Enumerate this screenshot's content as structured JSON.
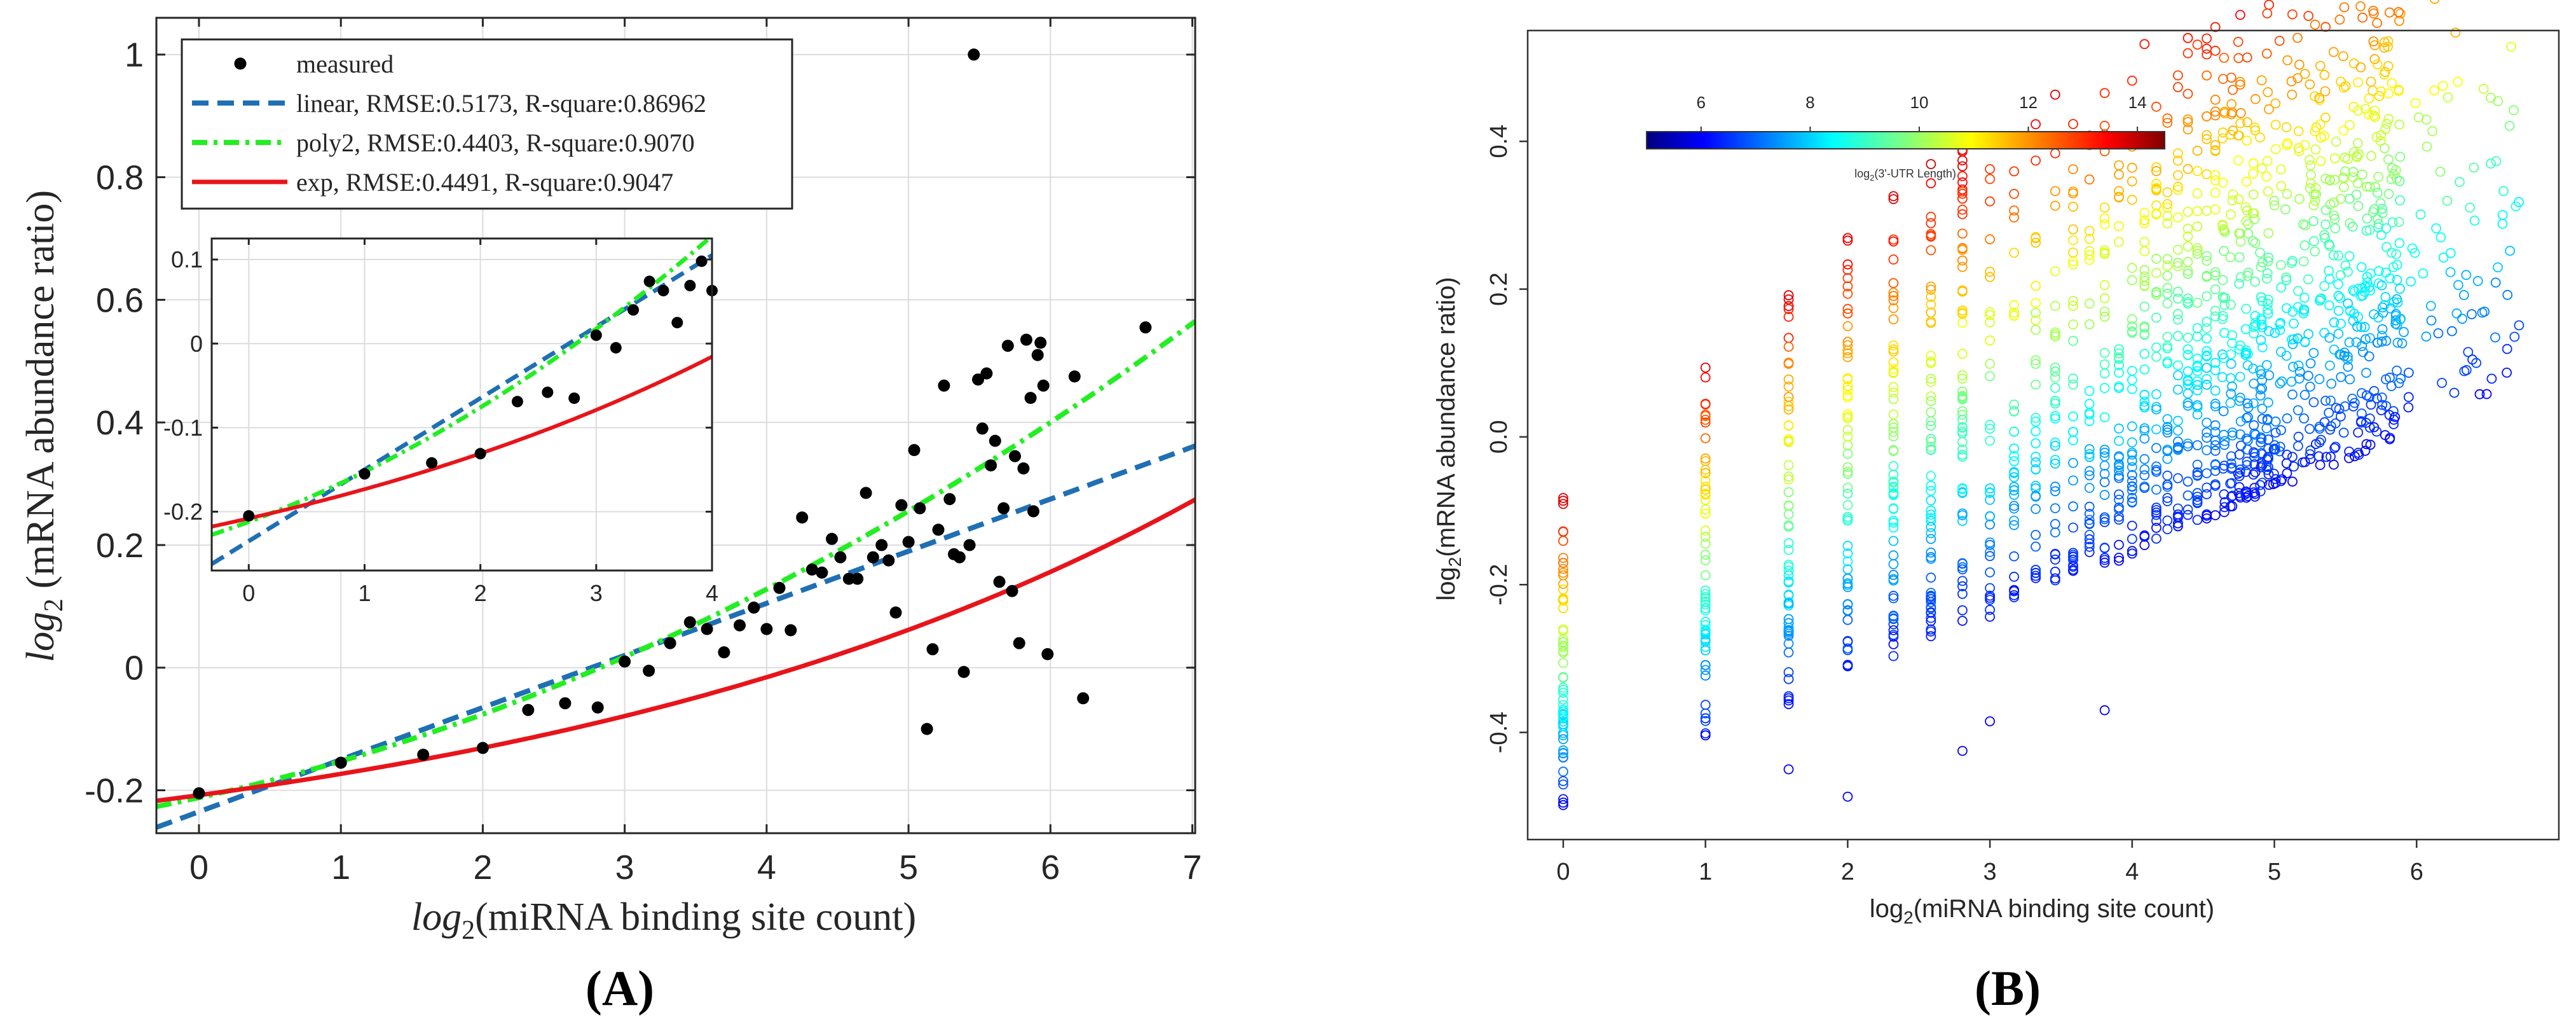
{
  "panel_labels": {
    "a": "(A)",
    "b": "(B)"
  },
  "chart_data": [
    {
      "type": "scatter",
      "panel": "A",
      "title": "",
      "xlabel_pre": "log",
      "xlabel_sub": "2",
      "xlabel_post": "(miRNA binding site count)",
      "ylabel_pre": "log",
      "ylabel_sub": "2",
      "ylabel_post": " (mRNA abundance ratio)",
      "xlim": [
        -0.3,
        7.02
      ],
      "ylim": [
        -0.27,
        1.06
      ],
      "xticks": [
        0,
        1,
        2,
        3,
        4,
        5,
        6,
        7
      ],
      "yticks": [
        -0.2,
        0,
        0.2,
        0.4,
        0.6,
        0.8,
        1
      ],
      "ytick_labels": [
        "-0.2",
        "0",
        "0.2",
        "0.4",
        "0.6",
        "0.8",
        "1"
      ],
      "grid": true,
      "legend_position": "top-left",
      "legend": [
        {
          "key": "measured",
          "label": "measured",
          "style": "marker",
          "color": "#000000"
        },
        {
          "key": "linear",
          "label": "linear, RMSE:0.5173, R-square:0.86962",
          "style": "dashed",
          "color": "#1f6fb4"
        },
        {
          "key": "poly2",
          "label": "poly2, RMSE:0.4403, R-square:0.9070",
          "style": "dashdot",
          "color": "#22ee22"
        },
        {
          "key": "exp",
          "label": "exp, RMSE:0.4491, R-square:0.9047",
          "style": "solid",
          "color": "#e8141a"
        }
      ],
      "fits": {
        "linear": {
          "intercept": -0.235,
          "slope": 0.085
        },
        "poly2": {
          "a": -0.212,
          "b": 0.051,
          "c": 0.0085
        },
        "exp": {
          "a": -0.365,
          "b": 0.157,
          "k": 0.2
        }
      },
      "points": [
        [
          0,
          -0.205
        ],
        [
          1,
          -0.155
        ],
        [
          1.58,
          -0.142
        ],
        [
          2,
          -0.131
        ],
        [
          2.32,
          -0.069
        ],
        [
          2.58,
          -0.058
        ],
        [
          2.81,
          -0.065
        ],
        [
          3,
          0.01
        ],
        [
          3.17,
          -0.005
        ],
        [
          3.32,
          0.04
        ],
        [
          3.46,
          0.074
        ],
        [
          3.58,
          0.063
        ],
        [
          3.7,
          0.025
        ],
        [
          3.81,
          0.069
        ],
        [
          3.91,
          0.098
        ],
        [
          4,
          0.063
        ],
        [
          4.09,
          0.13
        ],
        [
          4.17,
          0.061
        ],
        [
          4.25,
          0.245
        ],
        [
          4.32,
          0.16
        ],
        [
          4.39,
          0.155
        ],
        [
          4.46,
          0.21
        ],
        [
          4.52,
          0.18
        ],
        [
          4.58,
          0.145
        ],
        [
          4.64,
          0.145
        ],
        [
          4.7,
          0.285
        ],
        [
          4.75,
          0.18
        ],
        [
          4.81,
          0.2
        ],
        [
          4.86,
          0.175
        ],
        [
          4.91,
          0.09
        ],
        [
          4.95,
          0.265
        ],
        [
          5,
          0.205
        ],
        [
          5.04,
          0.355
        ],
        [
          5.08,
          0.26
        ],
        [
          5.13,
          -0.1
        ],
        [
          5.17,
          0.03
        ],
        [
          5.21,
          0.225
        ],
        [
          5.25,
          0.46
        ],
        [
          5.29,
          0.275
        ],
        [
          5.32,
          0.185
        ],
        [
          5.36,
          0.18
        ],
        [
          5.39,
          -0.007
        ],
        [
          5.43,
          0.2
        ],
        [
          5.46,
          1.0
        ],
        [
          5.49,
          0.47
        ],
        [
          5.52,
          0.39
        ],
        [
          5.55,
          0.48
        ],
        [
          5.58,
          0.33
        ],
        [
          5.61,
          0.37
        ],
        [
          5.64,
          0.14
        ],
        [
          5.67,
          0.26
        ],
        [
          5.7,
          0.525
        ],
        [
          5.73,
          0.125
        ],
        [
          5.75,
          0.345
        ],
        [
          5.78,
          0.04
        ],
        [
          5.81,
          0.325
        ],
        [
          5.83,
          0.535
        ],
        [
          5.86,
          0.44
        ],
        [
          5.88,
          0.255
        ],
        [
          5.91,
          0.51
        ],
        [
          5.93,
          0.53
        ],
        [
          5.95,
          0.46
        ],
        [
          5.98,
          0.022
        ],
        [
          6.17,
          0.475
        ],
        [
          6.23,
          -0.05
        ],
        [
          6.67,
          0.555
        ]
      ],
      "inset": {
        "xlim": [
          -0.32,
          4.0
        ],
        "ylim": [
          -0.27,
          0.125
        ],
        "xticks": [
          0,
          1,
          2,
          3,
          4
        ],
        "yticks": [
          -0.2,
          -0.1,
          0,
          0.1
        ],
        "ytick_labels": [
          "-0.2",
          "-0.1",
          "0",
          "0.1"
        ]
      }
    },
    {
      "type": "scatter",
      "panel": "B",
      "title": "",
      "xlabel_pre": "log",
      "xlabel_sub": "2",
      "xlabel_post": "(miRNA binding site count)",
      "ylabel_pre": "log",
      "ylabel_sub": "2",
      "ylabel_post": "(mRNA abundance ratio)",
      "xlim": [
        -0.25,
        7.0
      ],
      "ylim": [
        -0.545,
        0.55
      ],
      "xticks": [
        0,
        1,
        2,
        3,
        4,
        5,
        6
      ],
      "yticks": [
        -0.4,
        -0.2,
        0.0,
        0.2,
        0.4
      ],
      "ytick_labels": [
        "-0.4",
        "-0.2",
        "0.0",
        "0.2",
        "0.4"
      ],
      "grid": false,
      "marker": "open-circle",
      "n_columns_data": [
        0,
        1,
        1.585,
        2,
        2.322,
        2.585,
        2.807,
        3,
        3.17,
        3.322,
        3.459,
        3.585,
        3.7,
        3.807,
        3.907,
        4,
        4.087,
        4.17,
        4.248,
        4.322,
        4.392,
        4.459,
        4.524,
        4.585,
        4.644,
        4.7,
        4.755,
        4.807,
        4.858,
        4.907,
        4.954,
        5,
        5.044,
        5.087,
        5.129,
        5.17,
        5.209,
        5.248,
        5.285,
        5.322,
        5.358,
        5.392,
        5.426,
        5.459,
        5.492,
        5.524,
        5.555,
        5.585,
        5.615,
        5.644,
        5.672,
        5.7,
        5.728,
        5.755,
        5.781,
        5.807,
        5.833,
        5.858
      ],
      "colorbar": {
        "label_pre": "log",
        "label_sub": "2",
        "label_post": "(3'-UTR Length)",
        "range": [
          5,
          14.5
        ],
        "ticks": [
          6,
          8,
          10,
          12,
          14
        ],
        "position": "top-left",
        "colormap": "jet"
      }
    }
  ]
}
